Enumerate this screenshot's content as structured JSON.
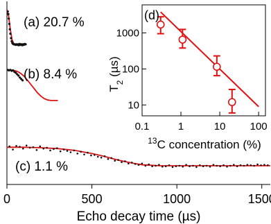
{
  "chart_data": [
    {
      "type": "scatter",
      "xlabel": "Echo decay time (µs)",
      "ylabel": "",
      "xlim": [
        0,
        1550
      ],
      "x_ticks": [
        0,
        500,
        1000,
        1500
      ],
      "x_tick_labels": [
        "0",
        "500",
        "1000",
        "1500"
      ],
      "y_ticks": false,
      "grid": false,
      "series": [
        {
          "name": "(a) 20.7 %",
          "label": "(a) 20.7 %",
          "x": [
            5,
            8,
            11,
            14,
            17,
            20,
            24,
            28,
            32,
            36,
            40,
            45,
            50,
            55,
            60,
            65,
            70,
            75,
            80,
            85,
            90,
            95,
            100,
            105,
            110
          ],
          "y": [
            0.96,
            0.9,
            0.8,
            0.68,
            0.56,
            0.46,
            0.36,
            0.29,
            0.25,
            0.23,
            0.22,
            0.22,
            0.21,
            0.22,
            0.21,
            0.22,
            0.2,
            0.23,
            0.21,
            0.22,
            0.2,
            0.22,
            0.21,
            0.23,
            0.22
          ],
          "fit_x": [
            0,
            10,
            20,
            30,
            40,
            50,
            60,
            70,
            80,
            90,
            100,
            110
          ],
          "fit_y": [
            1.0,
            0.85,
            0.55,
            0.32,
            0.24,
            0.22,
            0.21,
            0.21,
            0.21,
            0.21,
            0.21,
            0.21
          ]
        },
        {
          "name": "(b) 8.4 %",
          "label": "(b) 8.4 %",
          "x": [
            5,
            12,
            20,
            28,
            36,
            44,
            52,
            60,
            68,
            76,
            84,
            92
          ],
          "y": [
            0.96,
            0.95,
            0.96,
            0.94,
            0.95,
            0.92,
            0.9,
            0.87,
            0.84,
            0.8,
            0.77,
            0.74
          ],
          "fit_x": [
            0,
            20,
            40,
            60,
            80,
            100,
            120,
            140,
            160,
            180,
            200,
            220,
            240,
            260,
            280,
            300
          ],
          "fit_y": [
            0.96,
            0.96,
            0.95,
            0.93,
            0.89,
            0.83,
            0.75,
            0.66,
            0.57,
            0.48,
            0.41,
            0.36,
            0.33,
            0.32,
            0.32,
            0.32
          ]
        },
        {
          "name": "(c) 1.1 %",
          "label": "(c) 1.1 %",
          "x": [
            15,
            35,
            55,
            75,
            95,
            115,
            135,
            155,
            175,
            195,
            215,
            235,
            255,
            275,
            295,
            315,
            335,
            355,
            375,
            395,
            415,
            435,
            455,
            475,
            495,
            515,
            535,
            555,
            575,
            595,
            615,
            635,
            655,
            675,
            695,
            715,
            735,
            755,
            775,
            795,
            815,
            835,
            855,
            875,
            895,
            915,
            935,
            955,
            975,
            995,
            1015,
            1035,
            1055,
            1075,
            1095,
            1115,
            1135,
            1155,
            1175,
            1195,
            1215,
            1235,
            1255,
            1275,
            1295,
            1315,
            1335,
            1355,
            1375,
            1395,
            1415,
            1435,
            1455,
            1475,
            1495,
            1515,
            1535
          ],
          "y": [
            0.63,
            0.56,
            0.64,
            0.62,
            0.58,
            0.65,
            0.6,
            0.61,
            0.55,
            0.63,
            0.58,
            0.6,
            0.54,
            0.57,
            0.59,
            0.52,
            0.56,
            0.53,
            0.5,
            0.54,
            0.47,
            0.51,
            0.45,
            0.49,
            0.43,
            0.44,
            0.4,
            0.38,
            0.41,
            0.35,
            0.37,
            0.31,
            0.33,
            0.28,
            0.3,
            0.25,
            0.27,
            0.24,
            0.22,
            0.25,
            0.2,
            0.23,
            0.19,
            0.2,
            0.22,
            0.18,
            0.19,
            0.21,
            0.17,
            0.19,
            0.2,
            0.18,
            0.22,
            0.19,
            0.2,
            0.17,
            0.21,
            0.19,
            0.2,
            0.18,
            0.22,
            0.2,
            0.19,
            0.21,
            0.18,
            0.2,
            0.22,
            0.19,
            0.21,
            0.2,
            0.22,
            0.21,
            0.2,
            0.23,
            0.21,
            0.22,
            0.21
          ],
          "fit_x": [
            0,
            100,
            200,
            300,
            400,
            500,
            550,
            600,
            650,
            700,
            750,
            800,
            850,
            900,
            950,
            1000,
            1100,
            1200,
            1300,
            1400,
            1550
          ],
          "fit_y": [
            0.61,
            0.61,
            0.6,
            0.58,
            0.54,
            0.47,
            0.43,
            0.38,
            0.33,
            0.29,
            0.25,
            0.22,
            0.21,
            0.2,
            0.2,
            0.2,
            0.2,
            0.2,
            0.2,
            0.2,
            0.2
          ]
        }
      ]
    },
    {
      "type": "scatter",
      "label": "(d)",
      "xlabel": "13C concentration (%)",
      "xlabel_sup": "13",
      "xlabel_rest": "C concentration (%)",
      "ylabel": "T2 (µs)",
      "ylabel_sub": "2",
      "ylabel_pre": "T",
      "ylabel_post": "(µs)",
      "xscale": "log",
      "yscale": "log",
      "xlim": [
        0.1,
        150
      ],
      "ylim": [
        5,
        6000
      ],
      "x_ticks": [
        0.1,
        1,
        10,
        100
      ],
      "x_tick_labels": [
        "0.1",
        "1",
        "10",
        "100"
      ],
      "y_ticks": [
        10,
        100,
        1000
      ],
      "y_tick_labels": [
        "10",
        "100",
        "1000"
      ],
      "grid": false,
      "series": [
        {
          "name": "T2",
          "x": [
            0.3,
            1.1,
            8.4,
            20.7
          ],
          "y": [
            1700,
            650,
            115,
            12
          ],
          "err_low": [
            950,
            380,
            65,
            6
          ],
          "err_high": [
            2800,
            1250,
            230,
            27
          ]
        }
      ],
      "fit": {
        "x": [
          0.3,
          100
        ],
        "y": [
          3800,
          9
        ]
      }
    }
  ]
}
